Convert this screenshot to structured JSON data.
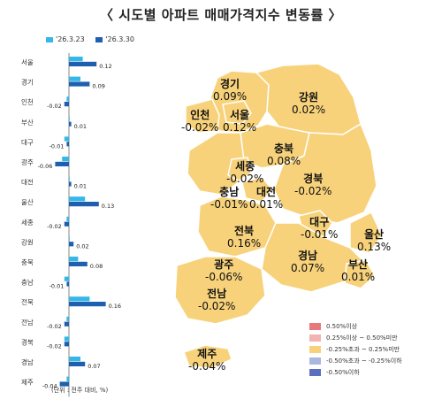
{
  "title": "〈 시도별 아파트 매매가격지수 변동률 〉",
  "unit_note": "(단위 : 전주 대비, %)",
  "colors": {
    "prev": "#35b8e8",
    "curr": "#1f5fb0",
    "land": "#f7d27a",
    "border": "#ffffff",
    "axis": "#8a8a8a"
  },
  "chart_data": {
    "type": "bar",
    "orientation": "horizontal",
    "categories": [
      "서울",
      "경기",
      "인천",
      "부산",
      "대구",
      "광주",
      "대전",
      "울산",
      "세종",
      "강원",
      "충북",
      "충남",
      "전북",
      "전남",
      "경북",
      "경남",
      "제주"
    ],
    "series": [
      {
        "name": "'26.3.23",
        "values": [
          0.06,
          0.05,
          -0.01,
          0.0,
          -0.02,
          -0.03,
          0.0,
          0.07,
          -0.01,
          0.0,
          0.04,
          -0.02,
          0.09,
          -0.01,
          -0.02,
          0.05,
          -0.01
        ]
      },
      {
        "name": "'26.3.30",
        "values": [
          0.12,
          0.09,
          -0.02,
          0.01,
          -0.01,
          -0.06,
          0.01,
          0.13,
          -0.02,
          0.02,
          0.08,
          -0.01,
          0.16,
          -0.02,
          -0.02,
          0.07,
          -0.04
        ]
      }
    ],
    "data_labels": [
      "0.12",
      "0.09",
      "-0.02",
      "0.01",
      "-0.01",
      "-0.06",
      "0.01",
      "0.13",
      "-0.02",
      "0.02",
      "0.08",
      "-0.01",
      "0.16",
      "-0.02",
      "-0.02",
      "0.07",
      "-0.04"
    ],
    "xlim": [
      -0.08,
      0.18
    ]
  },
  "map": {
    "regions": [
      {
        "key": "gyeonggi",
        "name": "경기",
        "value": "0.09%"
      },
      {
        "key": "gangwon",
        "name": "강원",
        "value": "0.02%"
      },
      {
        "key": "incheon",
        "name": "인천",
        "value": "-0.02%"
      },
      {
        "key": "seoul",
        "name": "서울",
        "value": "0.12%"
      },
      {
        "key": "chungbuk",
        "name": "충북",
        "value": "0.08%"
      },
      {
        "key": "sejong",
        "name": "세종",
        "value": "-0.02%"
      },
      {
        "key": "gyeongbuk",
        "name": "경북",
        "value": "-0.02%"
      },
      {
        "key": "chungnam",
        "name": "충남",
        "value": "-0.01%"
      },
      {
        "key": "daejeon",
        "name": "대전",
        "value": "0.01%"
      },
      {
        "key": "jeonbuk",
        "name": "전북",
        "value": "0.16%"
      },
      {
        "key": "daegu",
        "name": "대구",
        "value": "-0.01%"
      },
      {
        "key": "ulsan",
        "name": "울산",
        "value": "0.13%"
      },
      {
        "key": "gyeongnam",
        "name": "경남",
        "value": "0.07%"
      },
      {
        "key": "busan",
        "name": "부산",
        "value": "0.01%"
      },
      {
        "key": "gwangju",
        "name": "광주",
        "value": "-0.06%"
      },
      {
        "key": "jeonnam",
        "name": "전남",
        "value": "-0.02%"
      },
      {
        "key": "jeju",
        "name": "제주",
        "value": "-0.04%"
      }
    ],
    "legend": [
      {
        "label": "0.50%이상",
        "color": "#e8787c"
      },
      {
        "label": "0.25%이상 ~ 0.50%미만",
        "color": "#f2b3b5"
      },
      {
        "label": "-0.25%초과 ~ 0.25%미만",
        "color": "#f7d27a"
      },
      {
        "label": "-0.50%초과 ~ -0.25%이하",
        "color": "#a9b8dc"
      },
      {
        "label": "-0.50%이하",
        "color": "#5b6fc0"
      }
    ]
  }
}
